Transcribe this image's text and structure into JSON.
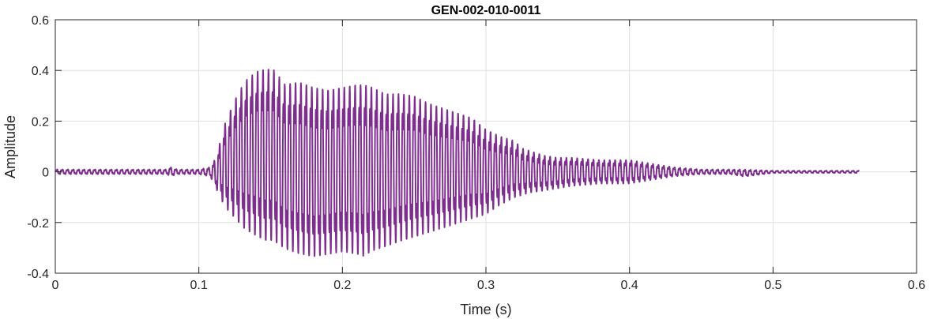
{
  "chart_data": {
    "type": "line",
    "title": "GEN-002-010-0011",
    "xlabel": "Time (s)",
    "ylabel": "Amplitude",
    "xlim": [
      0,
      0.6
    ],
    "ylim": [
      -0.4,
      0.6
    ],
    "grid": true,
    "xticks": [
      0,
      0.1,
      0.2,
      0.3,
      0.4,
      0.5,
      0.6
    ],
    "xtick_labels": [
      "0",
      "0.1",
      "0.2",
      "0.3",
      "0.4",
      "0.5",
      "0.6"
    ],
    "yticks": [
      -0.4,
      -0.2,
      0,
      0.2,
      0.4,
      0.6
    ],
    "ytick_labels": [
      "-0.4",
      "-0.2",
      "0",
      "0.2",
      "0.4",
      "0.6"
    ],
    "series": [
      {
        "color": "#7e2f8e",
        "x_range": [
          0,
          0.56
        ],
        "envelope": {
          "t": [
            0.0,
            0.078,
            0.08,
            0.085,
            0.1,
            0.108,
            0.112,
            0.118,
            0.125,
            0.132,
            0.14,
            0.146,
            0.152,
            0.16,
            0.17,
            0.18,
            0.19,
            0.2,
            0.21,
            0.215,
            0.22,
            0.23,
            0.24,
            0.25,
            0.26,
            0.27,
            0.28,
            0.29,
            0.3,
            0.31,
            0.32,
            0.325,
            0.33,
            0.34,
            0.35,
            0.36,
            0.38,
            0.4,
            0.41,
            0.42,
            0.43,
            0.44,
            0.45,
            0.46,
            0.47,
            0.48,
            0.5,
            0.56
          ],
          "pos": [
            0.01,
            0.01,
            0.02,
            0.01,
            0.01,
            0.02,
            0.06,
            0.2,
            0.3,
            0.38,
            0.42,
            0.43,
            0.43,
            0.37,
            0.38,
            0.36,
            0.35,
            0.36,
            0.37,
            0.37,
            0.36,
            0.33,
            0.33,
            0.32,
            0.29,
            0.27,
            0.25,
            0.23,
            0.18,
            0.15,
            0.13,
            0.1,
            0.09,
            0.07,
            0.06,
            0.06,
            0.05,
            0.05,
            0.04,
            0.03,
            0.02,
            0.015,
            0.01,
            0.01,
            0.01,
            0.01,
            0.005,
            0.005
          ],
          "neg": [
            -0.01,
            -0.01,
            -0.02,
            -0.01,
            -0.01,
            -0.02,
            -0.07,
            -0.15,
            -0.2,
            -0.25,
            -0.28,
            -0.3,
            -0.3,
            -0.33,
            -0.35,
            -0.36,
            -0.35,
            -0.34,
            -0.35,
            -0.36,
            -0.34,
            -0.32,
            -0.3,
            -0.28,
            -0.26,
            -0.24,
            -0.22,
            -0.2,
            -0.18,
            -0.14,
            -0.11,
            -0.1,
            -0.09,
            -0.08,
            -0.07,
            -0.06,
            -0.05,
            -0.05,
            -0.04,
            -0.03,
            -0.02,
            -0.015,
            -0.01,
            -0.01,
            -0.01,
            -0.02,
            -0.005,
            -0.005
          ]
        }
      }
    ]
  }
}
